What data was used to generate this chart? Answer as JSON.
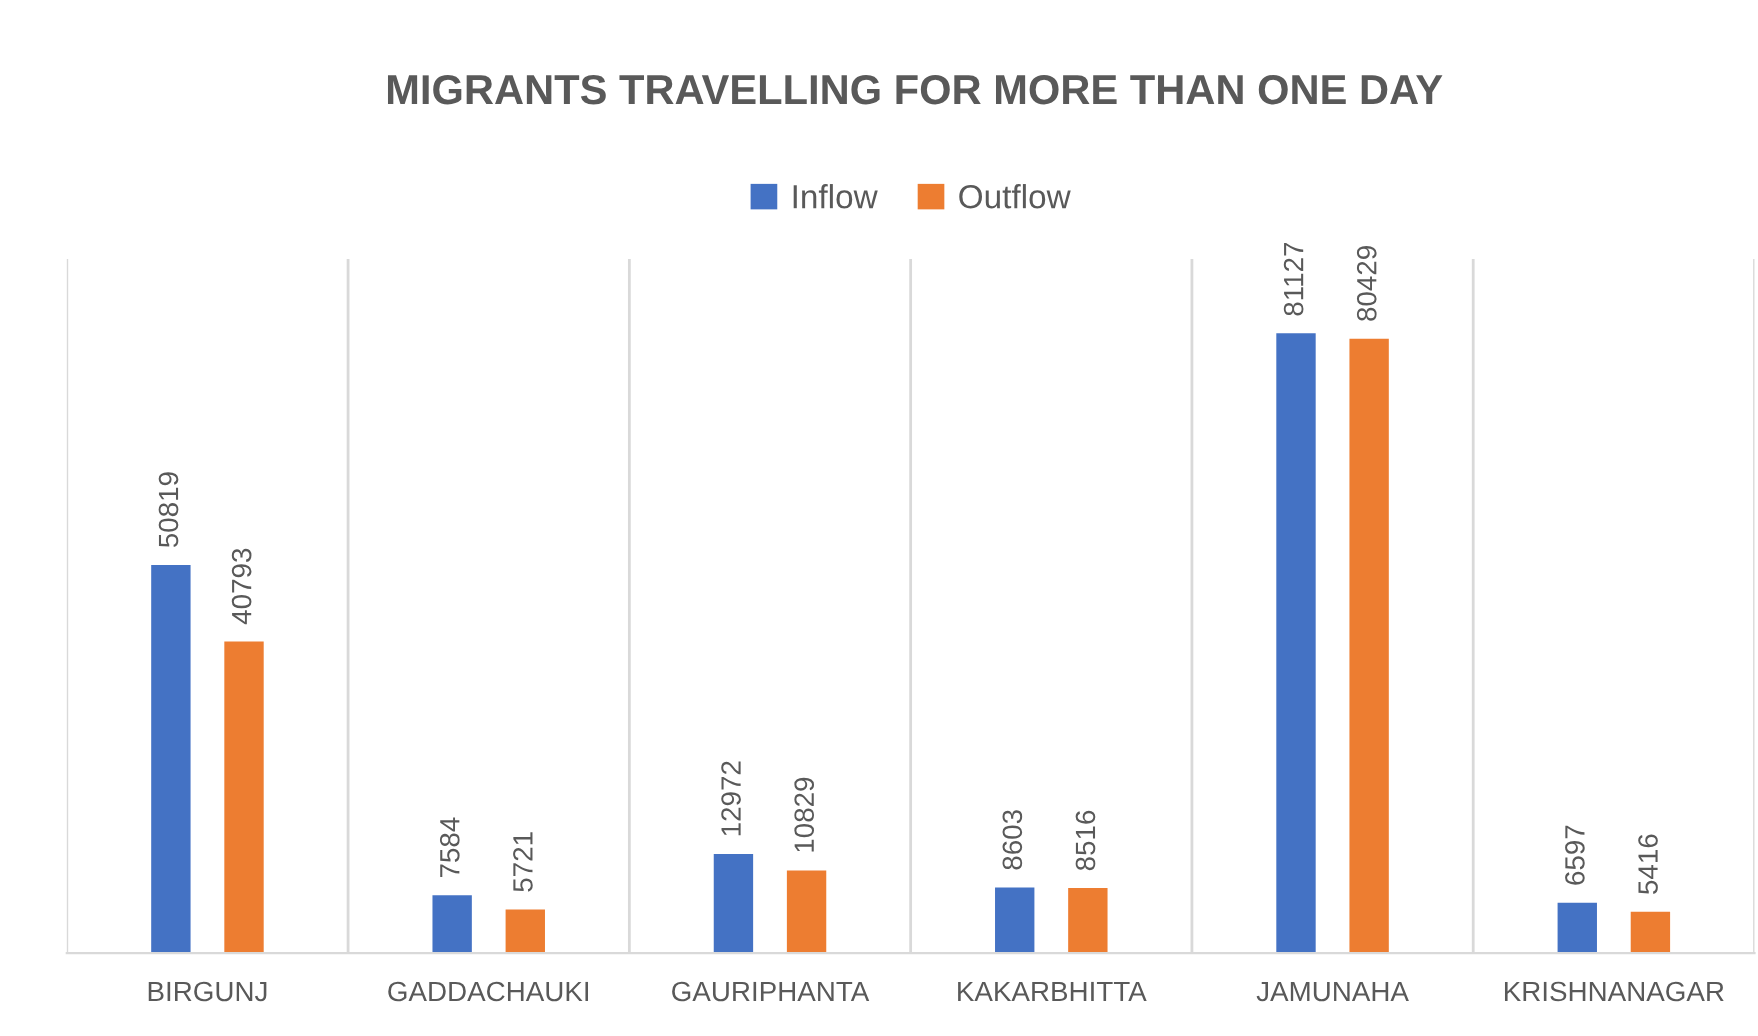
{
  "chart_data": {
    "type": "bar",
    "title": "MIGRANTS TRAVELLING FOR MORE THAN ONE DAY",
    "categories": [
      "BIRGUNJ",
      "GADDACHAUKI",
      "GAURIPHANTA",
      "KAKARBHITTA",
      "JAMUNAHA",
      "KRISHNANAGAR"
    ],
    "series": [
      {
        "name": "Inflow",
        "color": "#4472c4",
        "values": [
          50819,
          7584,
          12972,
          8603,
          81127,
          6597
        ]
      },
      {
        "name": "Outflow",
        "color": "#ed7d31",
        "values": [
          40793,
          5721,
          10829,
          8516,
          80429,
          5416
        ]
      }
    ],
    "data_labels": true,
    "legend": "top",
    "grid": "x"
  }
}
